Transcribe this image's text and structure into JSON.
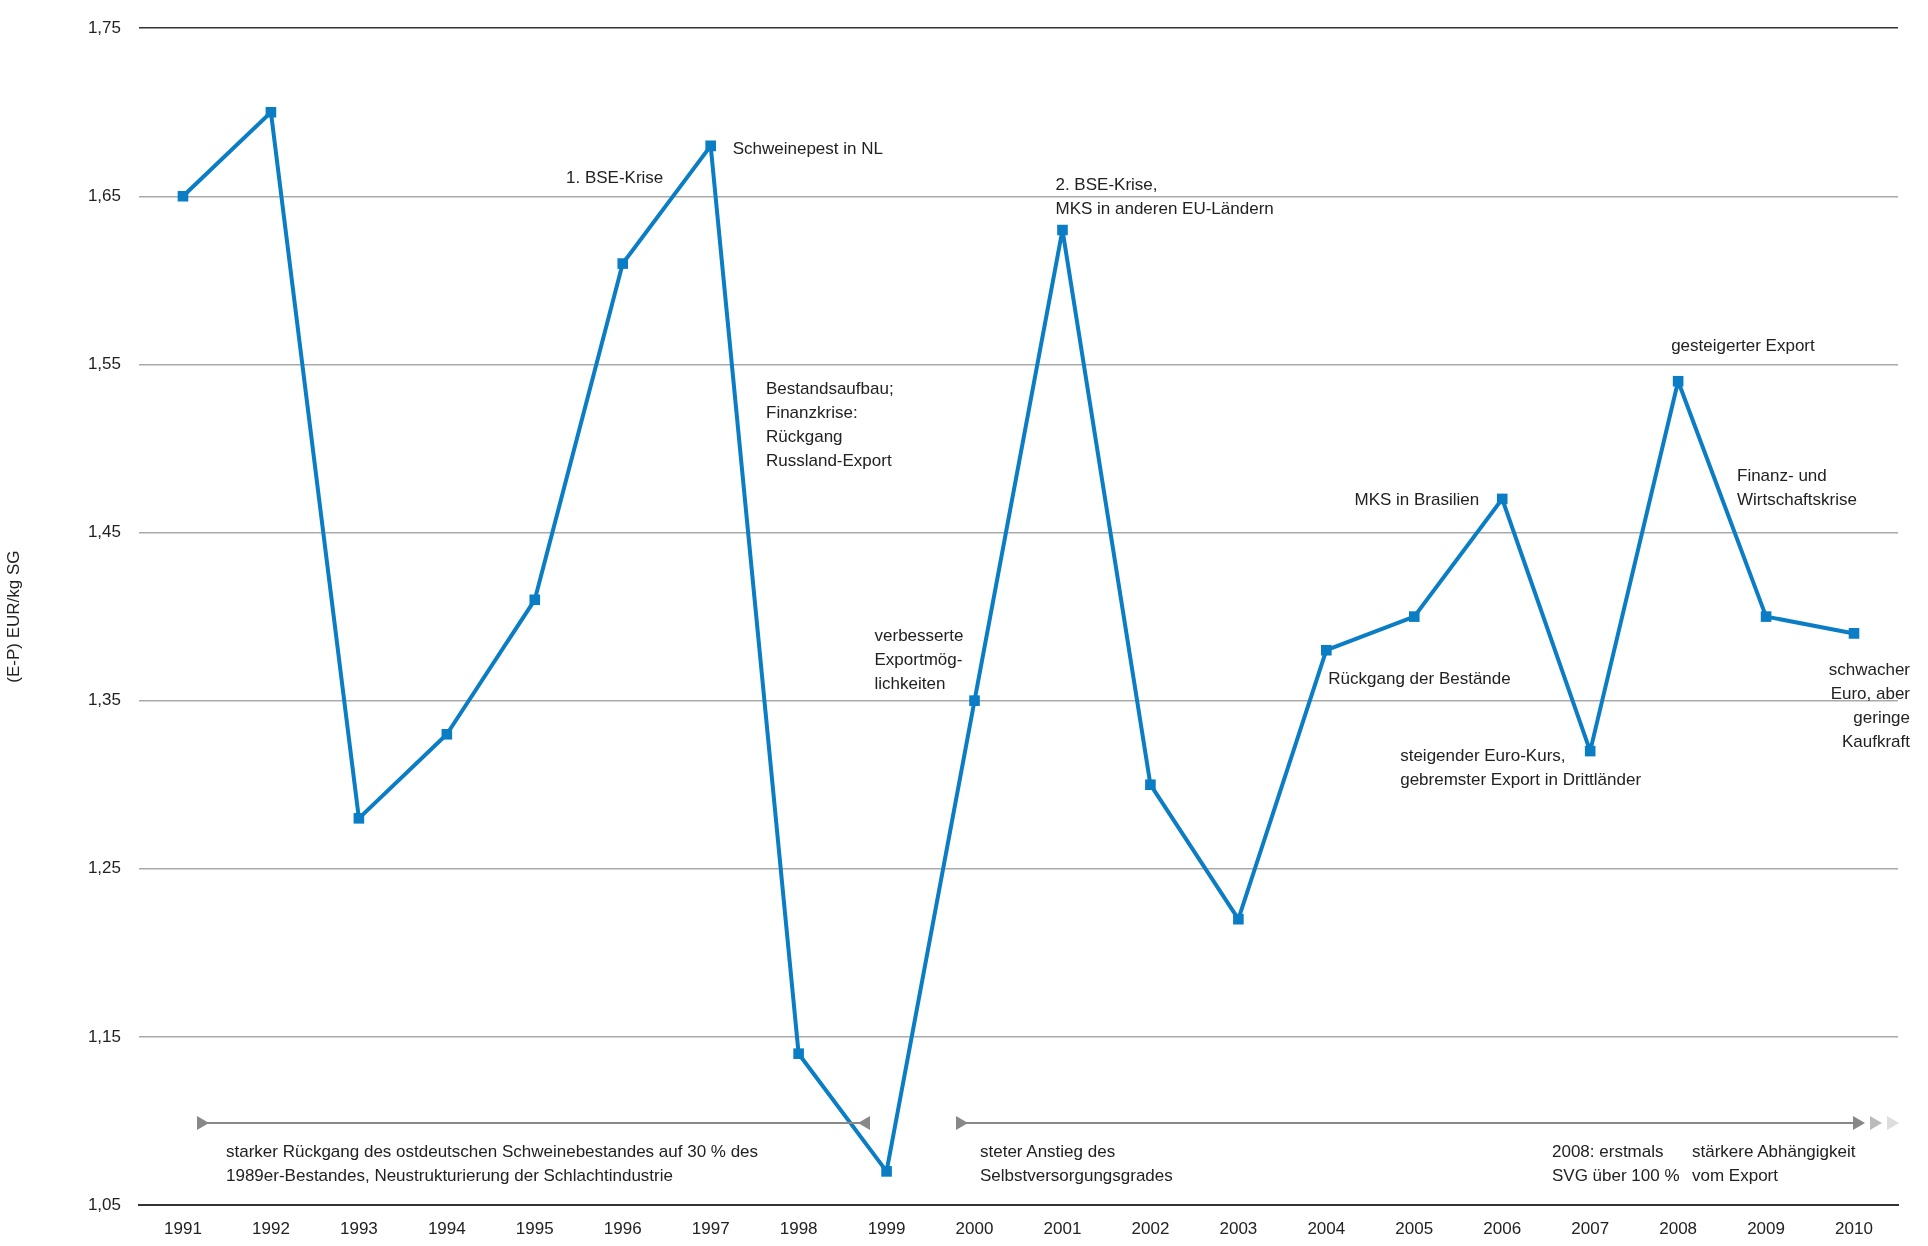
{
  "chart_data": {
    "type": "line",
    "ylabel": "(E-P) EUR/kg SG",
    "categories": [
      "1991",
      "1992",
      "1993",
      "1994",
      "1995",
      "1996",
      "1997",
      "1998",
      "1999",
      "2000",
      "2001",
      "2002",
      "2003",
      "2004",
      "2005",
      "2006",
      "2007",
      "2008",
      "2009",
      "2010"
    ],
    "series": [
      {
        "color": "#0a7dc4",
        "values": [
          1.65,
          1.7,
          1.28,
          1.33,
          1.41,
          1.61,
          1.68,
          1.14,
          1.07,
          1.35,
          1.63,
          1.3,
          1.22,
          1.38,
          1.4,
          1.47,
          1.32,
          1.54,
          1.4,
          1.39
        ]
      }
    ],
    "ylim": [
      1.05,
      1.75
    ],
    "yticks": [
      {
        "value": 1.05,
        "label": "1,05"
      },
      {
        "value": 1.15,
        "label": "1,15"
      },
      {
        "value": 1.25,
        "label": "1,25"
      },
      {
        "value": 1.35,
        "label": "1,35"
      },
      {
        "value": 1.45,
        "label": "1,45"
      },
      {
        "value": 1.55,
        "label": "1,55"
      },
      {
        "value": 1.65,
        "label": "1,65"
      },
      {
        "value": 1.75,
        "label": "1,75"
      }
    ],
    "grid": "y",
    "legend": false,
    "marker": "square",
    "line_style": "solid",
    "annotations": [
      "1. BSE-Krise",
      {
        "text": "Schweinepest in NL",
        "x": "1997",
        "y": 1.68
      },
      "Bestandsaufbau;\nFinanzkrise:\nRückgang\nRussland-Export",
      {
        "text": "verbesserte\nExportmög-\nlichkeiten",
        "x": "2000",
        "y": 1.35
      },
      {
        "text": "2. BSE-Krise,\nMKS in anderen EU-Ländern",
        "x": "2001",
        "y": 1.63
      },
      {
        "text": "Rückgang der Bestände",
        "x": "2004",
        "y": 1.38
      },
      {
        "text": "MKS in Brasilien",
        "x": "2006",
        "y": 1.47
      },
      {
        "text": "steigender Euro-Kurs,\ngebremster Export in Drittländer",
        "x": "2007",
        "y": 1.32
      },
      {
        "text": "gesteigerter Export",
        "x": "2008",
        "y": 1.54
      },
      "Finanz- und\nWirtschaftskrise",
      {
        "text": "schwacher\nEuro, aber\ngeringe\nKaufkraft",
        "x": "2010",
        "y": 1.39
      },
      "starker Rückgang des ostdeutschen Schweinebestandes auf 30 % des\n1989er-Bestandes, Neustrukturierung der Schlachtindustrie",
      "steter Anstieg des\nSelbstversorgungsgrades",
      "2008: erstmals\nSVG über 100 %",
      "stärkere Abhängigkeit\nvom Export"
    ]
  }
}
